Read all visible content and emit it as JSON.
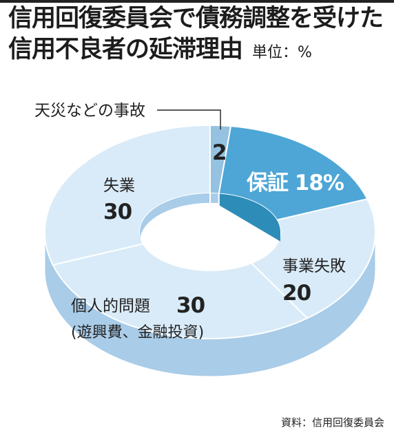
{
  "title": {
    "line1": "信用回復委員会で債務調整を受けた",
    "line2": "信用不良者の延滞理由",
    "unit": "単位：%"
  },
  "source": "資料：信用回復委員会",
  "chart_data": {
    "type": "pie",
    "style": "3d-donut",
    "title": "信用回復委員会で債務調整を受けた信用不良者の延滞理由",
    "unit": "%",
    "slices": [
      {
        "name": "天災などの事故",
        "value": 2,
        "color": "#94c2e0",
        "label": "2"
      },
      {
        "name": "保証",
        "value": 18,
        "color": "#4ea6d6",
        "label": "保証 18%"
      },
      {
        "name": "事業失敗",
        "value": 20,
        "color": "#d9ebf8",
        "label_name": "事業失敗",
        "label_value": "20"
      },
      {
        "name": "個人的問題",
        "value": 30,
        "color": "#d9ebf8",
        "label_name": "個人的問題",
        "label_value": "30",
        "note": "(遊興費、金融投資)"
      },
      {
        "name": "失業",
        "value": 30,
        "color": "#d9ebf8",
        "label_name": "失業",
        "label_value": "30"
      }
    ],
    "colors": {
      "side": "#a9cce8",
      "hole_top": "#a9cce8",
      "hole_dark": "#2d8db8",
      "leader": "#222222"
    }
  }
}
